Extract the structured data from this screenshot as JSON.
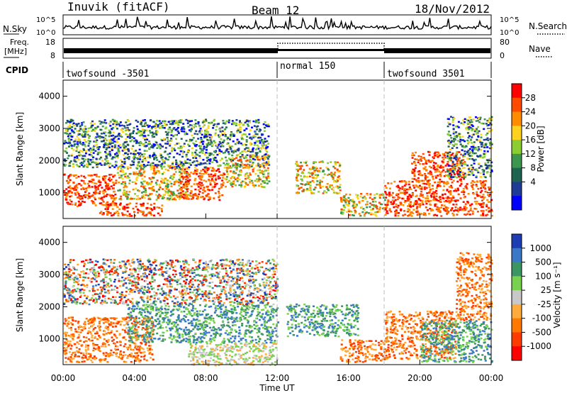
{
  "header": {
    "station": "Inuvik (fitACF)",
    "beam": "Beam 12",
    "date": "18/Nov/2012"
  },
  "strips": {
    "nsky": {
      "label": "N.Sky",
      "ticks": [
        "10^5",
        "10^0"
      ]
    },
    "nsearch": {
      "label": "N.Search",
      "ticks": [
        "10^5",
        "10^0"
      ]
    },
    "freq": {
      "label_top": "Freq.",
      "label_unit": "[MHz]",
      "ticks": [
        "18",
        "8"
      ]
    },
    "nave": {
      "label": "Nave",
      "ticks": [
        "80",
        "0"
      ]
    },
    "cpid": {
      "label": "CPID",
      "segments": [
        {
          "name": "twofsound -3501",
          "start": "00:00",
          "end": "12:00"
        },
        {
          "name": "normal 150",
          "start": "12:00",
          "end": "18:00"
        },
        {
          "name": "twofsound 3501",
          "start": "18:00",
          "end": "24:00"
        }
      ]
    }
  },
  "chart_data": [
    {
      "type": "heatmap",
      "name": "power",
      "ylabel": "Slant Range [km]",
      "y_ticks": [
        "1000",
        "2000",
        "3000",
        "4000"
      ],
      "ylim": [
        200,
        4500
      ],
      "x_ticks": [
        "00:00",
        "04:00",
        "08:00",
        "12:00",
        "16:00",
        "20:00",
        "00:00"
      ],
      "colorbar": {
        "label": "Power [dB]",
        "ticks": [
          "28",
          "24",
          "20",
          "16",
          "12",
          "8",
          "4"
        ],
        "colors": [
          "#ff0000",
          "#ff4a00",
          "#ff8c00",
          "#ffd21e",
          "#8ccd32",
          "#3c9650",
          "#1e6450",
          "#1e3c96",
          "#0000ff"
        ]
      },
      "bands": [
        {
          "t0": 0.0,
          "t1": 3.0,
          "r0": 600,
          "r1": 1600,
          "level": "high"
        },
        {
          "t0": 2.0,
          "t1": 5.5,
          "r0": 300,
          "r1": 700,
          "level": "high"
        },
        {
          "t0": 3.0,
          "t1": 7.0,
          "r0": 800,
          "r1": 1900,
          "level": "mid"
        },
        {
          "t0": 6.5,
          "t1": 9.0,
          "r0": 800,
          "r1": 1800,
          "level": "high"
        },
        {
          "t0": 0.0,
          "t1": 11.5,
          "r0": 1800,
          "r1": 3300,
          "level": "low"
        },
        {
          "t0": 9.0,
          "t1": 11.5,
          "r0": 1200,
          "r1": 2200,
          "level": "mid"
        },
        {
          "t0": 13.0,
          "t1": 15.5,
          "r0": 1000,
          "r1": 2000,
          "level": "mid"
        },
        {
          "t0": 15.5,
          "t1": 18.0,
          "r0": 300,
          "r1": 1000,
          "level": "mid"
        },
        {
          "t0": 18.0,
          "t1": 24.0,
          "r0": 300,
          "r1": 1400,
          "level": "high"
        },
        {
          "t0": 19.5,
          "t1": 22.5,
          "r0": 1400,
          "r1": 2300,
          "level": "high"
        },
        {
          "t0": 21.5,
          "t1": 24.0,
          "r0": 1500,
          "r1": 3400,
          "level": "low"
        }
      ]
    },
    {
      "type": "heatmap",
      "name": "velocity",
      "ylabel": "Slant Range [km]",
      "y_ticks": [
        "1000",
        "2000",
        "3000",
        "4000"
      ],
      "ylim": [
        200,
        4500
      ],
      "xlabel": "Time UT",
      "x_ticks": [
        "00:00",
        "04:00",
        "08:00",
        "12:00",
        "16:00",
        "20:00",
        "00:00"
      ],
      "colorbar": {
        "label": "Velocity [m s⁻¹]",
        "ticks": [
          "1000",
          "500",
          "100",
          "25",
          "-25",
          "-100",
          "-500",
          "-1000"
        ],
        "colors": [
          "#1e3cb4",
          "#3c78c8",
          "#3c9664",
          "#78d250",
          "#c8c8c8",
          "#ffaa3c",
          "#ff7800",
          "#ff3c00",
          "#ff0000"
        ]
      },
      "bands": [
        {
          "t0": 0.0,
          "t1": 5.0,
          "r0": 300,
          "r1": 1700,
          "level": "neg"
        },
        {
          "t0": 3.5,
          "t1": 12.0,
          "r0": 900,
          "r1": 2100,
          "level": "pos"
        },
        {
          "t0": 7.0,
          "t1": 12.0,
          "r0": 200,
          "r1": 900,
          "level": "zero"
        },
        {
          "t0": 0.0,
          "t1": 12.0,
          "r0": 2100,
          "r1": 3500,
          "level": "mixed"
        },
        {
          "t0": 12.5,
          "t1": 16.5,
          "r0": 1100,
          "r1": 2100,
          "level": "pos"
        },
        {
          "t0": 15.5,
          "t1": 18.0,
          "r0": 300,
          "r1": 1000,
          "level": "neg"
        },
        {
          "t0": 18.0,
          "t1": 22.0,
          "r0": 400,
          "r1": 1900,
          "level": "neg"
        },
        {
          "t0": 20.0,
          "t1": 24.0,
          "r0": 300,
          "r1": 1600,
          "level": "pos"
        },
        {
          "t0": 22.0,
          "t1": 24.0,
          "r0": 1600,
          "r1": 3700,
          "level": "neg"
        }
      ]
    }
  ]
}
